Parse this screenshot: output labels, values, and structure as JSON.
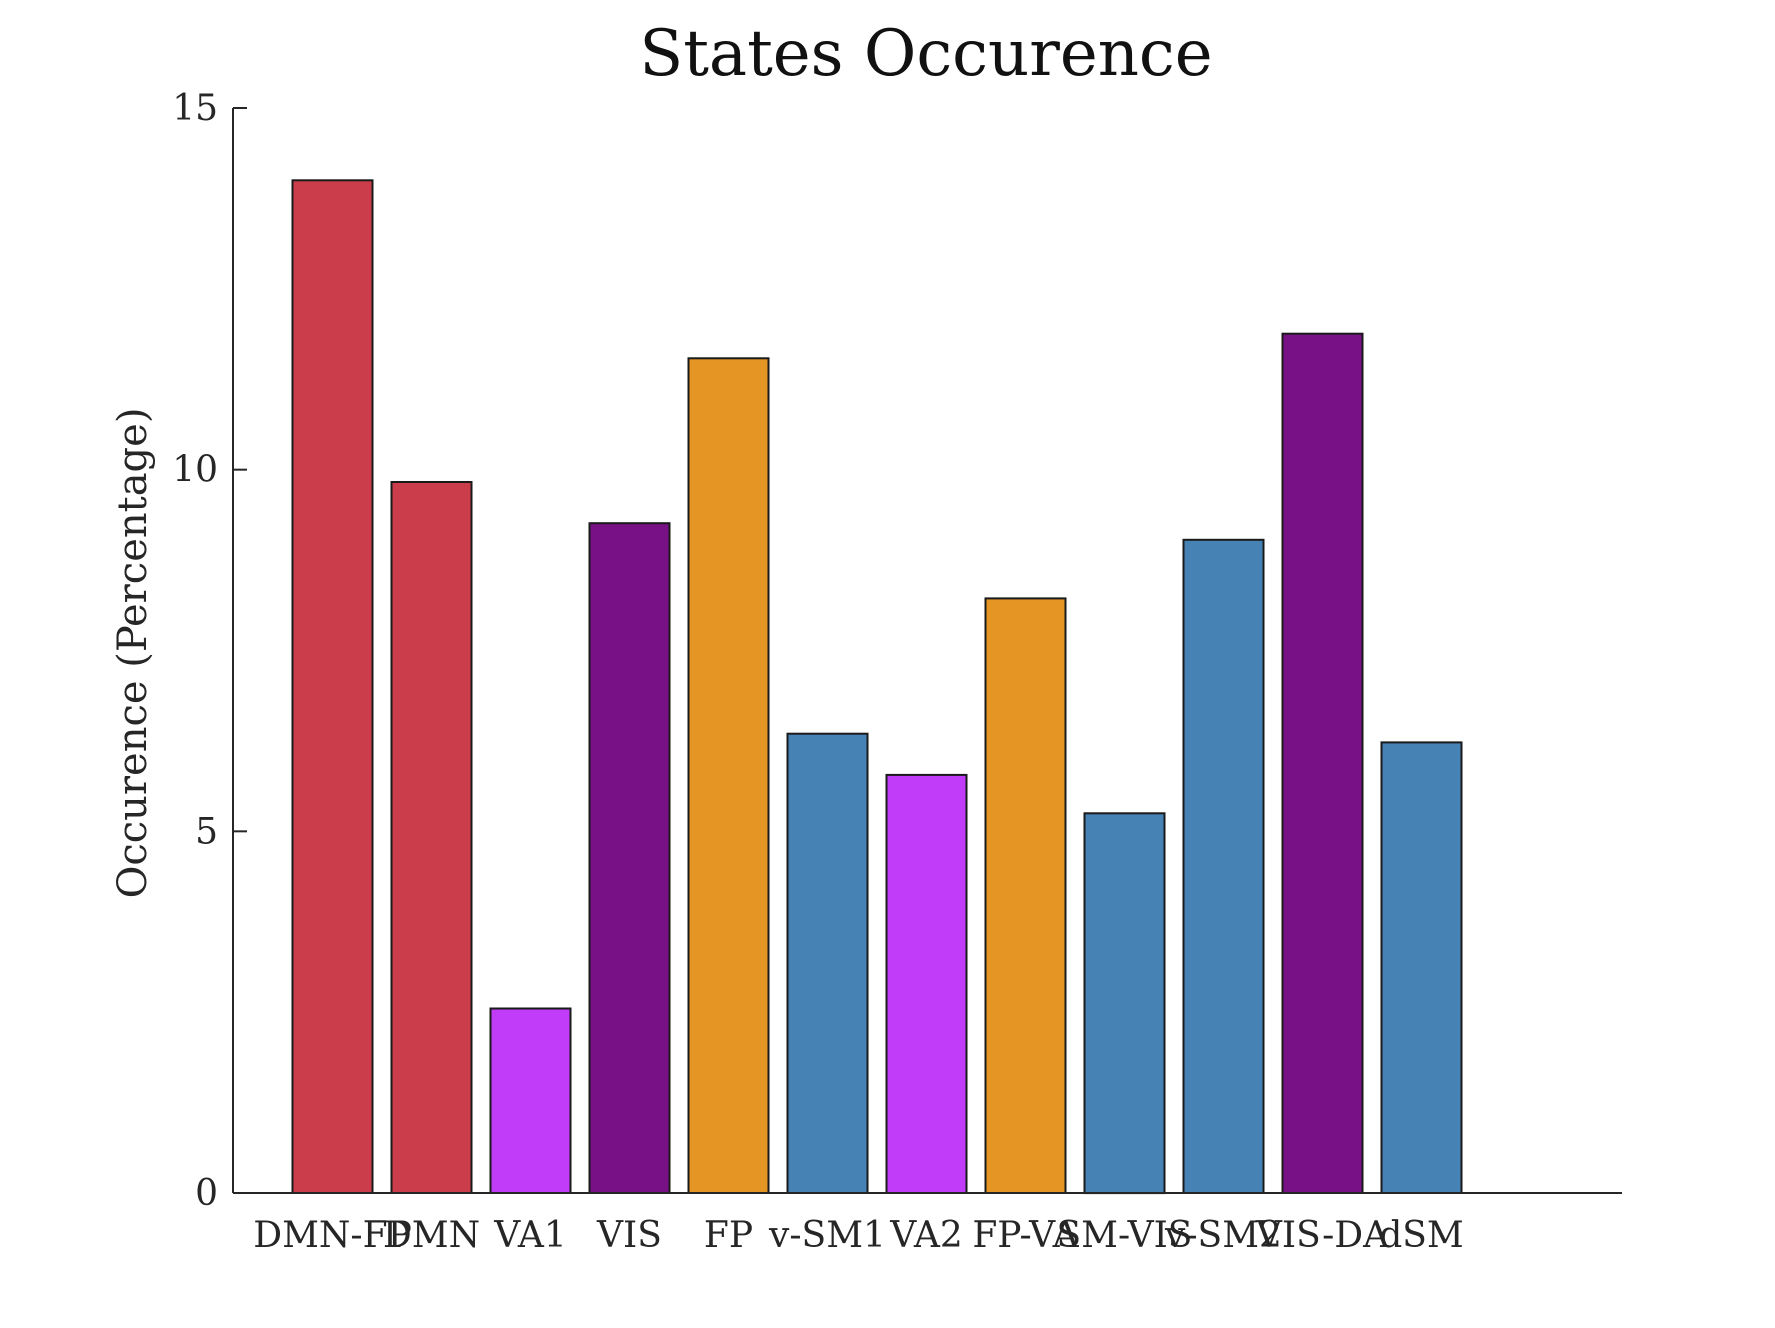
{
  "chart_data": {
    "type": "bar",
    "title": "States Occurence",
    "xlabel": "",
    "ylabel": "Occurence (Percentage)",
    "ylim": [
      0,
      15
    ],
    "yticks": [
      0,
      5,
      10,
      15
    ],
    "grid": false,
    "categories": [
      "DMN-FP",
      "DMN",
      "VA1",
      "VIS",
      "FP",
      "v-SM1",
      "VA2",
      "FP-VA",
      "SM-VIS",
      "v-SM2",
      "VIS-DA",
      "dSM"
    ],
    "values": [
      14.0,
      9.83,
      2.55,
      9.26,
      11.54,
      6.35,
      5.78,
      8.22,
      5.25,
      9.03,
      11.88,
      6.23
    ],
    "colors": [
      "#cc3d4b",
      "#cc3d4b",
      "#c03cf8",
      "#771185",
      "#e49524",
      "#4682b4",
      "#c03cf8",
      "#e49524",
      "#4682b4",
      "#4682b4",
      "#771185",
      "#4682b4"
    ]
  }
}
